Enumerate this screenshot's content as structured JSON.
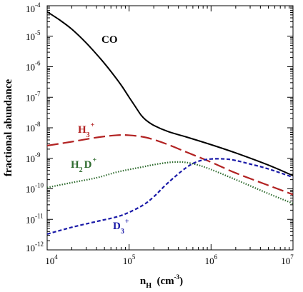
{
  "chart_data": {
    "type": "line",
    "title": "",
    "xlabel": {
      "base": "n",
      "sub": "H",
      "unit": "(cm",
      "unit_exp": "-3",
      "unit_close": ")"
    },
    "ylabel": "fractional abundance",
    "x_scale": "log",
    "y_scale": "log",
    "xlim": [
      10000,
      10000000
    ],
    "ylim": [
      1e-12,
      0.0001
    ],
    "x_ticks": [
      {
        "value": 10000,
        "base": "10",
        "exp": "4"
      },
      {
        "value": 100000,
        "base": "10",
        "exp": "5"
      },
      {
        "value": 1000000,
        "base": "10",
        "exp": "6"
      },
      {
        "value": 10000000,
        "base": "10",
        "exp": "7"
      }
    ],
    "y_ticks": [
      {
        "value": 1e-12,
        "base": "10",
        "exp": "-12"
      },
      {
        "value": 1e-11,
        "base": "10",
        "exp": "-11"
      },
      {
        "value": 1e-10,
        "base": "10",
        "exp": "-10"
      },
      {
        "value": 1e-09,
        "base": "10",
        "exp": "-9"
      },
      {
        "value": 1e-08,
        "base": "10",
        "exp": "-8"
      },
      {
        "value": 1e-07,
        "base": "10",
        "exp": "-7"
      },
      {
        "value": 1e-06,
        "base": "10",
        "exp": "-6"
      },
      {
        "value": 1e-05,
        "base": "10",
        "exp": "-5"
      },
      {
        "value": 0.0001,
        "base": "10",
        "exp": "-4"
      }
    ],
    "grid": false,
    "legend": "none (series labelled directly on the curves)",
    "series": [
      {
        "id": "co",
        "label": {
          "main": "CO",
          "sub": "",
          "main2": "",
          "sup": ""
        },
        "color": "#000000",
        "dash": "solid",
        "x": [
          10000,
          14000,
          20000,
          30000,
          45000,
          60000,
          80000,
          100000,
          120000,
          140000,
          160000,
          200000,
          300000,
          500000,
          1000000,
          2000000,
          5000000,
          10000000
        ],
        "y": [
          6.3e-05,
          3.5e-05,
          1.7e-05,
          6e-06,
          1.8e-06,
          7e-07,
          2.5e-07,
          1e-07,
          4.8e-08,
          2.6e-08,
          1.8e-08,
          1.2e-08,
          7.5e-09,
          5e-09,
          2.8e-09,
          1.5e-09,
          6e-10,
          2.7e-10
        ]
      },
      {
        "id": "h3plus",
        "label": {
          "main": "H",
          "sub": "3",
          "main2": "",
          "sup": "+"
        },
        "color": "#b22222",
        "dash": "long-dash",
        "x": [
          10000,
          20000,
          40000,
          70000,
          100000,
          150000,
          200000,
          300000,
          500000,
          1000000,
          2000000,
          5000000,
          10000000
        ],
        "y": [
          2.6e-09,
          3.5e-09,
          4.8e-09,
          5.7e-09,
          5.7e-09,
          5e-09,
          4.1e-09,
          2.8e-09,
          1.6e-09,
          7.5e-10,
          3.3e-10,
          1.3e-10,
          6.5e-11
        ]
      },
      {
        "id": "h2dplus",
        "label": {
          "main": "H",
          "sub": "2",
          "main2": "D",
          "sup": "+"
        },
        "color": "#2e6b2e",
        "dash": "dotted",
        "x": [
          10000,
          20000,
          40000,
          70000,
          100000,
          150000,
          200000,
          300000,
          400000,
          500000,
          700000,
          1000000,
          2000000,
          5000000,
          10000000
        ],
        "y": [
          1.1e-10,
          1.6e-10,
          2.3e-10,
          3.5e-10,
          4.3e-10,
          5.3e-10,
          6.2e-10,
          7.3e-10,
          7.6e-10,
          7.3e-10,
          6e-10,
          4.3e-10,
          2e-10,
          7e-11,
          3.3e-11
        ]
      },
      {
        "id": "d3plus",
        "label": {
          "main": "D",
          "sub": "3",
          "main2": "",
          "sup": "+"
        },
        "color": "#1a1aa8",
        "dash": "short-dash",
        "x": [
          10000,
          20000,
          40000,
          70000,
          100000,
          150000,
          200000,
          300000,
          500000,
          700000,
          1000000,
          1500000,
          2000000,
          3000000,
          5000000,
          10000000
        ],
        "y": [
          3.3e-12,
          5.5e-12,
          8.5e-12,
          1.2e-11,
          1.7e-11,
          3e-11,
          5.5e-11,
          1.6e-10,
          5e-10,
          8e-10,
          9.5e-10,
          9.5e-10,
          8.5e-10,
          6.5e-10,
          4.5e-10,
          2.4e-10
        ]
      }
    ]
  }
}
